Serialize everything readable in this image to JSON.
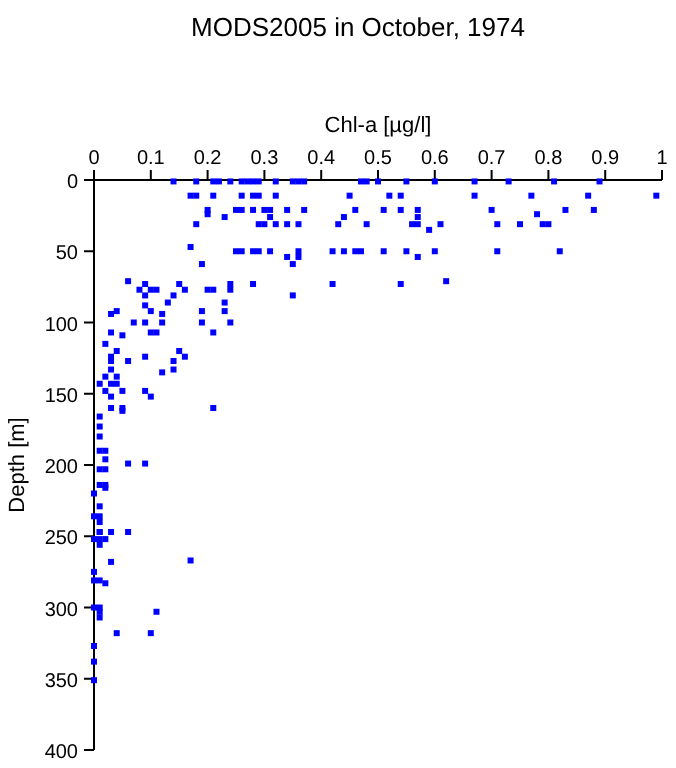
{
  "chart_data": {
    "type": "scatter",
    "title": "MODS2005 in October, 1974",
    "xlabel": "Chl-a [µg/l]",
    "ylabel": "Depth [m]",
    "xlim": [
      0,
      1
    ],
    "xticks": [
      0,
      0.1,
      0.2,
      0.3,
      0.4,
      0.5,
      0.6,
      0.7,
      0.8,
      0.9,
      1
    ],
    "ylim": [
      400,
      0
    ],
    "yticks": [
      0,
      50,
      100,
      150,
      200,
      250,
      300,
      350,
      400
    ],
    "marker": "square",
    "grid": false,
    "series": [
      {
        "color": "#0000ff",
        "x": [
          0.14,
          0.18,
          0.21,
          0.22,
          0.24,
          0.26,
          0.27,
          0.28,
          0.29,
          0.32,
          0.35,
          0.36,
          0.37,
          0.47,
          0.48,
          0.5,
          0.55,
          0.6,
          0.67,
          0.73,
          0.81,
          0.89,
          0.17,
          0.18,
          0.21,
          0.26,
          0.28,
          0.29,
          0.32,
          0.45,
          0.52,
          0.54,
          0.67,
          0.77,
          0.87,
          0.99,
          0.2,
          0.25,
          0.26,
          0.28,
          0.3,
          0.31,
          0.34,
          0.37,
          0.46,
          0.51,
          0.54,
          0.57,
          0.7,
          0.83,
          0.88,
          0.2,
          0.78,
          0.23,
          0.31,
          0.44,
          0.57,
          0.18,
          0.29,
          0.3,
          0.32,
          0.34,
          0.36,
          0.43,
          0.48,
          0.56,
          0.57,
          0.61,
          0.71,
          0.75,
          0.79,
          0.8,
          0.59,
          0.17,
          0.25,
          0.26,
          0.28,
          0.29,
          0.31,
          0.36,
          0.42,
          0.44,
          0.46,
          0.47,
          0.51,
          0.55,
          0.6,
          0.71,
          0.82,
          0.34,
          0.36,
          0.57,
          0.19,
          0.35,
          0.06,
          0.62,
          0.09,
          0.24,
          0.28,
          0.42,
          0.54,
          0.15,
          0.08,
          0.1,
          0.11,
          0.16,
          0.2,
          0.21,
          0.24,
          0.09,
          0.14,
          0.35,
          0.13,
          0.23,
          0.09,
          0.04,
          0.1,
          0.19,
          0.23,
          0.03,
          0.12,
          0.07,
          0.09,
          0.12,
          0.19,
          0.24,
          0.03,
          0.1,
          0.11,
          0.21,
          0.05,
          0.02,
          0.04,
          0.15,
          0.03,
          0.09,
          0.16,
          0.03,
          0.06,
          0.14,
          0.03,
          0.14,
          0.12,
          0.02,
          0.04,
          0.01,
          0.03,
          0.04,
          0.02,
          0.05,
          0.09,
          0.03,
          0.1,
          0.03,
          0.05,
          0.21,
          0.05,
          0.01,
          0.01,
          0.01,
          0.01,
          0.02,
          0.02,
          0.06,
          0.09,
          0.01,
          0.02,
          0.01,
          0.02,
          0.02,
          0,
          0.01,
          0,
          0.01,
          0.01,
          0.01,
          0.01,
          0.03,
          0.06,
          0,
          0.01,
          0.02,
          0.01,
          0.17,
          0.03,
          0,
          0,
          0.01,
          0.02,
          0,
          0.01,
          0.11,
          0.01,
          0.01,
          0.04,
          0.1,
          0,
          0,
          0
        ],
        "values": [
          1,
          1,
          1,
          1,
          1,
          1,
          1,
          1,
          1,
          1,
          1,
          1,
          1,
          1,
          1,
          1,
          1,
          1,
          1,
          1,
          1,
          1,
          11,
          11,
          11,
          11,
          11,
          11,
          11,
          11,
          11,
          11,
          11,
          11,
          11,
          11,
          21,
          21,
          21,
          21,
          21,
          21,
          21,
          21,
          21,
          21,
          21,
          21,
          21,
          21,
          21,
          24,
          24,
          26,
          26,
          26,
          26,
          31,
          31,
          31,
          31,
          31,
          31,
          31,
          31,
          31,
          31,
          31,
          31,
          31,
          31,
          31,
          35,
          47,
          50,
          50,
          50,
          50,
          50,
          50,
          50,
          50,
          50,
          50,
          50,
          50,
          50,
          50,
          50,
          54,
          54,
          54,
          59,
          59,
          71,
          71,
          73,
          73,
          73,
          73,
          73,
          73,
          77,
          77,
          77,
          77,
          77,
          77,
          77,
          81,
          81,
          81,
          86,
          86,
          88,
          92,
          92,
          92,
          92,
          94,
          94,
          100,
          100,
          100,
          100,
          100,
          107,
          107,
          107,
          107,
          109,
          115,
          120,
          120,
          124,
          124,
          124,
          127,
          127,
          127,
          133,
          133,
          135,
          138,
          138,
          143,
          143,
          143,
          148,
          148,
          148,
          152,
          152,
          160,
          160,
          160,
          162,
          166,
          173,
          180,
          190,
          190,
          196,
          199,
          199,
          203,
          203,
          214,
          214,
          216,
          220,
          229,
          236,
          236,
          240,
          247,
          247,
          247,
          247,
          252,
          252,
          252,
          256,
          267,
          268,
          275,
          281,
          281,
          283,
          300,
          300,
          303,
          303,
          307,
          318,
          318,
          327,
          338,
          351
        ]
      }
    ]
  }
}
